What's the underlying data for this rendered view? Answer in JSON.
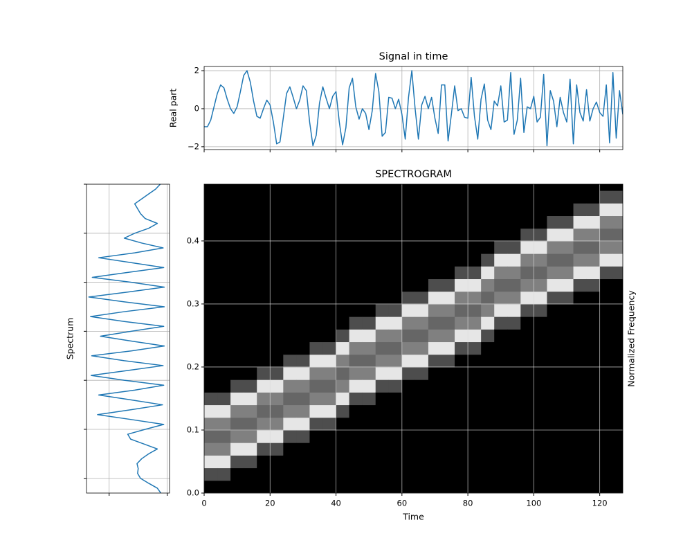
{
  "chart_data": [
    {
      "type": "line",
      "title": "Signal in time",
      "ylabel": "Real part",
      "color": "#1f77b4",
      "values": [
        -0.95,
        -0.95,
        -0.6,
        0.1,
        0.8,
        1.25,
        1.1,
        0.5,
        0.0,
        -0.25,
        0.1,
        0.9,
        1.75,
        2.0,
        1.4,
        0.4,
        -0.4,
        -0.5,
        0.0,
        0.45,
        0.2,
        -0.7,
        -1.85,
        -1.75,
        -0.5,
        0.8,
        1.15,
        0.6,
        0.0,
        0.45,
        1.2,
        0.95,
        -0.7,
        -1.95,
        -1.4,
        0.3,
        1.15,
        0.55,
        0.0,
        0.65,
        0.9,
        -0.7,
        -1.9,
        -1.0,
        1.1,
        1.6,
        0.1,
        -0.55,
        0.0,
        -0.25,
        -1.1,
        -0.1,
        1.85,
        0.9,
        -1.45,
        -1.25,
        0.6,
        0.55,
        0.0,
        0.5,
        -0.3,
        -1.6,
        0.6,
        2.0,
        0.0,
        -1.6,
        0.2,
        0.65,
        0.0,
        0.6,
        -0.5,
        -1.3,
        1.25,
        1.25,
        -1.7,
        -0.3,
        1.2,
        -0.1,
        0.0,
        -0.45,
        -0.5,
        1.65,
        -0.4,
        -1.6,
        0.5,
        1.3,
        -0.6,
        -1.1,
        0.4,
        0.15,
        1.2,
        -0.7,
        -0.6,
        1.9,
        -1.35,
        -0.6,
        1.6,
        -1.25,
        0.1,
        0.0,
        0.65,
        -0.7,
        -0.45,
        1.8,
        -1.95,
        0.95,
        0.4,
        -0.95,
        0.6,
        -0.2,
        -0.7,
        1.55,
        -1.85,
        1.25,
        -0.2,
        -0.65,
        1.0,
        -0.65,
        0.0,
        0.35,
        -0.2,
        -0.4,
        1.25,
        -1.8,
        1.9,
        -1.55,
        0.95,
        -0.3
      ],
      "xlim": [
        0,
        127
      ],
      "xticks": [
        0,
        20,
        40,
        60,
        80,
        100,
        120
      ],
      "xticklabels": false,
      "ylim": [
        -2.15,
        2.22
      ],
      "yticks": [
        {
          "value": -2,
          "label": "−2"
        },
        0,
        2
      ],
      "grid": true
    },
    {
      "type": "heatmap",
      "title": "SPECTROGRAM",
      "xlabel": "Time",
      "ylabel": "Normalized Frequency",
      "ylabel_side": "right",
      "colormap": "gray",
      "x": [
        2,
        6,
        10,
        14,
        18,
        22,
        26,
        30,
        34,
        38,
        42,
        46,
        50,
        54,
        58,
        62,
        66,
        70,
        74,
        78,
        82,
        86,
        90,
        94,
        98,
        102,
        106,
        110,
        114,
        118,
        122,
        126
      ],
      "y": [
        0.01,
        0.03,
        0.05,
        0.07,
        0.09,
        0.11,
        0.13,
        0.15,
        0.17,
        0.19,
        0.21,
        0.23,
        0.25,
        0.27,
        0.29,
        0.31,
        0.33,
        0.35,
        0.37,
        0.39,
        0.41,
        0.43,
        0.45,
        0.47,
        0.49
      ],
      "z": [
        [
          0,
          0.3,
          0.9,
          0.5,
          0.4,
          0.5,
          0.9,
          0.3,
          0,
          0,
          0,
          0,
          0,
          0,
          0,
          0,
          0,
          0,
          0,
          0,
          0,
          0,
          0,
          0,
          0
        ],
        [
          0,
          0.3,
          0.9,
          0.5,
          0.4,
          0.5,
          0.9,
          0.3,
          0,
          0,
          0,
          0,
          0,
          0,
          0,
          0,
          0,
          0,
          0,
          0,
          0,
          0,
          0,
          0,
          0
        ],
        [
          0,
          0,
          0.3,
          0.9,
          0.5,
          0.4,
          0.5,
          0.9,
          0.3,
          0,
          0,
          0,
          0,
          0,
          0,
          0,
          0,
          0,
          0,
          0,
          0,
          0,
          0,
          0,
          0
        ],
        [
          0,
          0,
          0.3,
          0.9,
          0.5,
          0.4,
          0.5,
          0.9,
          0.3,
          0,
          0,
          0,
          0,
          0,
          0,
          0,
          0,
          0,
          0,
          0,
          0,
          0,
          0,
          0,
          0
        ],
        [
          0,
          0,
          0,
          0.3,
          0.9,
          0.5,
          0.4,
          0.5,
          0.9,
          0.3,
          0,
          0,
          0,
          0,
          0,
          0,
          0,
          0,
          0,
          0,
          0,
          0,
          0,
          0,
          0
        ],
        [
          0,
          0,
          0,
          0.3,
          0.9,
          0.5,
          0.4,
          0.5,
          0.9,
          0.3,
          0,
          0,
          0,
          0,
          0,
          0,
          0,
          0,
          0,
          0,
          0,
          0,
          0,
          0,
          0
        ],
        [
          0,
          0,
          0,
          0,
          0.3,
          0.9,
          0.5,
          0.4,
          0.5,
          0.9,
          0.3,
          0,
          0,
          0,
          0,
          0,
          0,
          0,
          0,
          0,
          0,
          0,
          0,
          0,
          0
        ],
        [
          0,
          0,
          0,
          0,
          0.3,
          0.9,
          0.5,
          0.4,
          0.5,
          0.9,
          0.3,
          0,
          0,
          0,
          0,
          0,
          0,
          0,
          0,
          0,
          0,
          0,
          0,
          0,
          0
        ],
        [
          0,
          0,
          0,
          0,
          0,
          0.3,
          0.9,
          0.5,
          0.4,
          0.5,
          0.9,
          0.3,
          0,
          0,
          0,
          0,
          0,
          0,
          0,
          0,
          0,
          0,
          0,
          0,
          0
        ],
        [
          0,
          0,
          0,
          0,
          0,
          0.3,
          0.9,
          0.5,
          0.4,
          0.5,
          0.9,
          0.3,
          0,
          0,
          0,
          0,
          0,
          0,
          0,
          0,
          0,
          0,
          0,
          0,
          0
        ],
        [
          0,
          0,
          0,
          0,
          0,
          0,
          0.3,
          0.9,
          0.5,
          0.4,
          0.5,
          0.9,
          0.3,
          0,
          0,
          0,
          0,
          0,
          0,
          0,
          0,
          0,
          0,
          0,
          0
        ],
        [
          0,
          0,
          0,
          0,
          0,
          0,
          0,
          0.3,
          0.9,
          0.5,
          0.4,
          0.5,
          0.9,
          0.3,
          0,
          0,
          0,
          0,
          0,
          0,
          0,
          0,
          0,
          0,
          0
        ],
        [
          0,
          0,
          0,
          0,
          0,
          0,
          0,
          0.3,
          0.9,
          0.5,
          0.4,
          0.5,
          0.9,
          0.3,
          0,
          0,
          0,
          0,
          0,
          0,
          0,
          0,
          0,
          0,
          0
        ],
        [
          0,
          0,
          0,
          0,
          0,
          0,
          0,
          0,
          0.3,
          0.9,
          0.5,
          0.4,
          0.5,
          0.9,
          0.3,
          0,
          0,
          0,
          0,
          0,
          0,
          0,
          0,
          0,
          0
        ],
        [
          0,
          0,
          0,
          0,
          0,
          0,
          0,
          0,
          0.3,
          0.9,
          0.5,
          0.4,
          0.5,
          0.9,
          0.3,
          0,
          0,
          0,
          0,
          0,
          0,
          0,
          0,
          0,
          0
        ],
        [
          0,
          0,
          0,
          0,
          0,
          0,
          0,
          0,
          0,
          0.3,
          0.9,
          0.5,
          0.4,
          0.5,
          0.9,
          0.3,
          0,
          0,
          0,
          0,
          0,
          0,
          0,
          0,
          0
        ],
        [
          0,
          0,
          0,
          0,
          0,
          0,
          0,
          0,
          0,
          0.3,
          0.9,
          0.5,
          0.4,
          0.5,
          0.9,
          0.3,
          0,
          0,
          0,
          0,
          0,
          0,
          0,
          0,
          0
        ],
        [
          0,
          0,
          0,
          0,
          0,
          0,
          0,
          0,
          0,
          0,
          0.3,
          0.9,
          0.5,
          0.4,
          0.5,
          0.9,
          0.3,
          0,
          0,
          0,
          0,
          0,
          0,
          0,
          0
        ],
        [
          0,
          0,
          0,
          0,
          0,
          0,
          0,
          0,
          0,
          0,
          0.3,
          0.9,
          0.5,
          0.4,
          0.5,
          0.9,
          0.3,
          0,
          0,
          0,
          0,
          0,
          0,
          0,
          0
        ],
        [
          0,
          0,
          0,
          0,
          0,
          0,
          0,
          0,
          0,
          0,
          0,
          0.3,
          0.9,
          0.5,
          0.4,
          0.5,
          0.9,
          0.3,
          0,
          0,
          0,
          0,
          0,
          0,
          0
        ],
        [
          0,
          0,
          0,
          0,
          0,
          0,
          0,
          0,
          0,
          0,
          0,
          0.3,
          0.9,
          0.5,
          0.4,
          0.5,
          0.9,
          0.3,
          0,
          0,
          0,
          0,
          0,
          0,
          0
        ],
        [
          0,
          0,
          0,
          0,
          0,
          0,
          0,
          0,
          0,
          0,
          0,
          0,
          0.3,
          0.9,
          0.5,
          0.4,
          0.5,
          0.9,
          0.3,
          0,
          0,
          0,
          0,
          0,
          0
        ],
        [
          0,
          0,
          0,
          0,
          0,
          0,
          0,
          0,
          0,
          0,
          0,
          0,
          0,
          0.3,
          0.9,
          0.5,
          0.4,
          0.5,
          0.9,
          0.3,
          0,
          0,
          0,
          0,
          0
        ],
        [
          0,
          0,
          0,
          0,
          0,
          0,
          0,
          0,
          0,
          0,
          0,
          0,
          0,
          0.3,
          0.9,
          0.5,
          0.4,
          0.5,
          0.9,
          0.3,
          0,
          0,
          0,
          0,
          0
        ],
        [
          0,
          0,
          0,
          0,
          0,
          0,
          0,
          0,
          0,
          0,
          0,
          0,
          0,
          0,
          0.3,
          0.9,
          0.5,
          0.4,
          0.5,
          0.9,
          0.3,
          0,
          0,
          0,
          0
        ],
        [
          0,
          0,
          0,
          0,
          0,
          0,
          0,
          0,
          0,
          0,
          0,
          0,
          0,
          0,
          0.3,
          0.9,
          0.5,
          0.4,
          0.5,
          0.9,
          0.3,
          0,
          0,
          0,
          0
        ],
        [
          0,
          0,
          0,
          0,
          0,
          0,
          0,
          0,
          0,
          0,
          0,
          0,
          0,
          0,
          0,
          0.3,
          0.9,
          0.5,
          0.4,
          0.5,
          0.9,
          0.3,
          0,
          0,
          0
        ],
        [
          0,
          0,
          0,
          0,
          0,
          0,
          0,
          0,
          0,
          0,
          0,
          0,
          0,
          0,
          0,
          0.3,
          0.9,
          0.5,
          0.4,
          0.5,
          0.9,
          0.3,
          0,
          0,
          0
        ],
        [
          0,
          0,
          0,
          0,
          0,
          0,
          0,
          0,
          0,
          0,
          0,
          0,
          0,
          0,
          0,
          0,
          0.3,
          0.9,
          0.5,
          0.4,
          0.5,
          0.9,
          0.3,
          0,
          0
        ],
        [
          0,
          0,
          0,
          0,
          0,
          0,
          0,
          0,
          0,
          0,
          0,
          0,
          0,
          0,
          0,
          0,
          0.3,
          0.9,
          0.5,
          0.4,
          0.5,
          0.9,
          0.3,
          0,
          0
        ],
        [
          0,
          0,
          0,
          0,
          0,
          0,
          0,
          0,
          0,
          0,
          0,
          0,
          0,
          0,
          0,
          0,
          0,
          0.3,
          0.9,
          0.5,
          0.4,
          0.5,
          0.9,
          0.3,
          0
        ],
        [
          0,
          0,
          0,
          0,
          0,
          0,
          0,
          0,
          0,
          0,
          0,
          0,
          0,
          0,
          0,
          0,
          0,
          0.3,
          0.9,
          0.5,
          0.4,
          0.5,
          0.9,
          0.3,
          0
        ]
      ],
      "xlim": [
        0,
        127
      ],
      "xticks": [
        0,
        20,
        40,
        60,
        80,
        100,
        120
      ],
      "ylim": [
        0,
        0.49
      ],
      "yticks": [
        {
          "value": 0,
          "label": "0.0"
        },
        0.1,
        0.2,
        0.3,
        0.4
      ],
      "grid": true
    },
    {
      "type": "line",
      "orientation": "vertical",
      "ylabel": "Spectrum",
      "color": "#1f77b4",
      "values": [
        0.89,
        0.83,
        0.68,
        0.54,
        0.49,
        0.5,
        0.48,
        0.56,
        0.68,
        0.83,
        0.6,
        0.37,
        0.32,
        0.62,
        0.94,
        0.38,
        -0.2,
        0.38,
        0.92,
        0.38,
        -0.18,
        0.44,
        0.94,
        0.26,
        -0.31,
        0.32,
        0.93,
        0.26,
        -0.3,
        0.38,
        0.95,
        0.38,
        -0.15,
        0.38,
        0.94,
        0.26,
        -0.32,
        0.26,
        0.95,
        0.26,
        -0.35,
        0.32,
        0.95,
        0.38,
        -0.29,
        0.32,
        0.94,
        0.38,
        -0.18,
        0.44,
        0.93,
        0.56,
        0.26,
        0.44,
        0.68,
        0.83,
        0.62,
        0.54,
        0.49,
        0.44,
        0.56,
        0.68,
        0.8,
        0.88
      ],
      "xlim": [
        -0.39,
        1.04
      ],
      "xticks": [
        0,
        1
      ],
      "xticklabels": false,
      "ylim": [
        0,
        63
      ],
      "yticks": [
        3,
        13,
        23,
        33,
        43,
        53,
        63
      ],
      "yticklabels": false,
      "grid": true
    }
  ]
}
